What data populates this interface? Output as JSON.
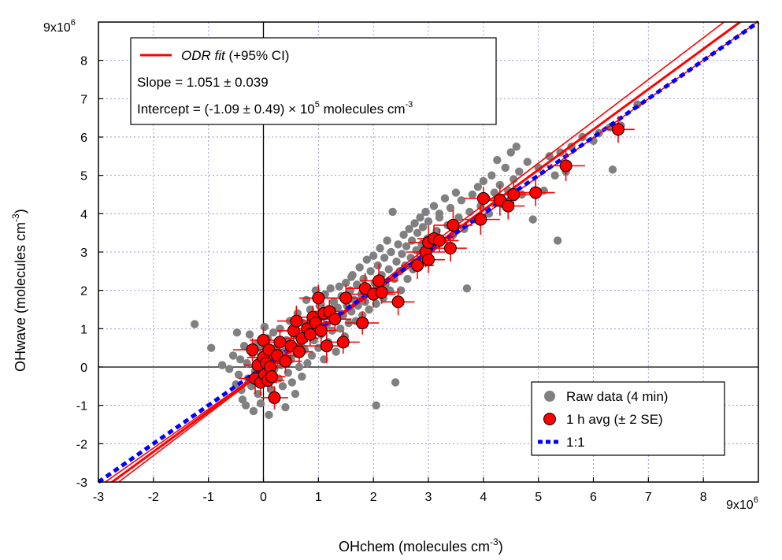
{
  "chart_data": {
    "type": "scatter",
    "xlabel": "OHchem (molecules cm",
    "xlabel_sup": "-3",
    "xlabel_tail": ")",
    "ylabel": "OHwave (molecules cm",
    "ylabel_sup": "-3",
    "ylabel_tail": ")",
    "xlim": [
      -3,
      9
    ],
    "ylim": [
      -3,
      9
    ],
    "xticks": [
      -3,
      -2,
      -1,
      0,
      1,
      2,
      3,
      4,
      5,
      6,
      7,
      8
    ],
    "yticks": [
      -3,
      -2,
      -1,
      0,
      1,
      2,
      3,
      4,
      5,
      6,
      7,
      8
    ],
    "x_multiplier": "9x10",
    "x_multiplier_exp": "6",
    "y_multiplier": "9x10",
    "y_multiplier_exp": "6",
    "grid": true,
    "fit_box": {
      "legend_label": "ODR fit",
      "legend_suffix": " (+95% CI)",
      "slope_text": "Slope = 1.051 ± 0.039",
      "intercept_text": "Intercept = (-1.09 ± 0.49) × 10",
      "intercept_exp": "5",
      "intercept_units": " molecules cm",
      "intercept_units_exp": "-3"
    },
    "legend": [
      {
        "label": "Raw data (4 min)",
        "marker": "gray-dot"
      },
      {
        "label": "1 h avg (± 2 SE)",
        "marker": "red-circle"
      },
      {
        "label": "1:1",
        "marker": "blue-dash"
      }
    ],
    "legend_position": "bottom-right",
    "colors": {
      "raw": "#808080",
      "avg": "#ff0000",
      "one_to_one": "#0000ff",
      "fit": "#ff0000",
      "grid": "#9a9adc"
    },
    "fit_lines": {
      "central": {
        "slope": 1.051,
        "intercept": -0.109
      },
      "ci_upper": {
        "slope": 1.09,
        "intercept": -0.13
      },
      "ci_lower": {
        "slope": 1.012,
        "intercept": -0.09
      }
    },
    "series": [
      {
        "name": "Raw data (4 min)",
        "points": [
          [
            -1.25,
            1.12
          ],
          [
            -0.95,
            0.5
          ],
          [
            -0.75,
            0.05
          ],
          [
            -0.62,
            -0.05
          ],
          [
            -0.55,
            0.3
          ],
          [
            -0.5,
            -0.45
          ],
          [
            -0.48,
            0.9
          ],
          [
            -0.45,
            -0.2
          ],
          [
            -0.42,
            0.2
          ],
          [
            -0.4,
            -0.6
          ],
          [
            -0.38,
            -0.85
          ],
          [
            -0.35,
            0.55
          ],
          [
            -0.32,
            -1.0
          ],
          [
            -0.3,
            0.1
          ],
          [
            -0.28,
            -0.3
          ],
          [
            -0.25,
            0.85
          ],
          [
            -0.22,
            -0.5
          ],
          [
            -0.2,
            0.35
          ],
          [
            -0.18,
            -1.15
          ],
          [
            -0.15,
            -0.1
          ],
          [
            -0.12,
            0.6
          ],
          [
            -0.1,
            -0.7
          ],
          [
            -0.08,
            0.15
          ],
          [
            -0.05,
            -0.95
          ],
          [
            -0.02,
            0.45
          ],
          [
            0.0,
            -0.4
          ],
          [
            0.02,
            1.05
          ],
          [
            0.05,
            -0.2
          ],
          [
            0.08,
            0.75
          ],
          [
            0.1,
            -1.25
          ],
          [
            0.12,
            0.3
          ],
          [
            0.15,
            -0.6
          ],
          [
            0.18,
            0.9
          ],
          [
            0.2,
            -0.05
          ],
          [
            0.22,
            -0.85
          ],
          [
            0.25,
            0.55
          ],
          [
            0.28,
            -0.3
          ],
          [
            0.3,
            1.0
          ],
          [
            0.32,
            0.05
          ],
          [
            0.35,
            -0.5
          ],
          [
            0.38,
            0.4
          ],
          [
            0.4,
            -1.05
          ],
          [
            0.42,
            0.7
          ],
          [
            0.45,
            -0.15
          ],
          [
            0.48,
            1.2
          ],
          [
            0.5,
            0.2
          ],
          [
            0.52,
            -0.4
          ],
          [
            0.55,
            0.85
          ],
          [
            0.58,
            -0.7
          ],
          [
            0.6,
            0.35
          ],
          [
            0.62,
            1.4
          ],
          [
            0.65,
            0.0
          ],
          [
            0.68,
            0.6
          ],
          [
            0.7,
            -0.25
          ],
          [
            0.72,
            1.15
          ],
          [
            0.75,
            0.45
          ],
          [
            0.78,
            1.75
          ],
          [
            0.8,
            0.1
          ],
          [
            0.82,
            0.95
          ],
          [
            0.85,
            1.5
          ],
          [
            0.88,
            0.3
          ],
          [
            0.9,
            1.25
          ],
          [
            0.92,
            0.7
          ],
          [
            0.95,
            2.0
          ],
          [
            0.98,
            1.05
          ],
          [
            1.0,
            0.5
          ],
          [
            1.02,
            1.6
          ],
          [
            1.05,
            0.85
          ],
          [
            1.08,
            1.3
          ],
          [
            1.1,
            0.2
          ],
          [
            1.12,
            1.9
          ],
          [
            1.15,
            1.1
          ],
          [
            1.18,
            0.65
          ],
          [
            1.2,
            1.45
          ],
          [
            1.22,
            2.05
          ],
          [
            1.25,
            0.95
          ],
          [
            1.28,
            1.7
          ],
          [
            1.3,
            1.2
          ],
          [
            1.32,
            0.4
          ],
          [
            1.35,
            1.55
          ],
          [
            1.38,
            2.1
          ],
          [
            1.4,
            1.0
          ],
          [
            1.42,
            1.85
          ],
          [
            1.45,
            1.35
          ],
          [
            1.48,
            0.8
          ],
          [
            1.5,
            2.2
          ],
          [
            1.52,
            1.6
          ],
          [
            1.55,
            1.15
          ],
          [
            1.58,
            2.0
          ],
          [
            1.6,
            1.45
          ],
          [
            1.62,
            2.4
          ],
          [
            1.65,
            1.75
          ],
          [
            1.68,
            1.2
          ],
          [
            1.7,
            2.15
          ],
          [
            1.72,
            1.6
          ],
          [
            1.75,
            2.6
          ],
          [
            1.78,
            1.9
          ],
          [
            1.8,
            1.35
          ],
          [
            1.82,
            2.3
          ],
          [
            1.85,
            1.7
          ],
          [
            1.88,
            2.8
          ],
          [
            1.9,
            2.05
          ],
          [
            1.92,
            1.5
          ],
          [
            1.95,
            2.5
          ],
          [
            1.98,
            1.85
          ],
          [
            2.0,
            2.9
          ],
          [
            2.02,
            2.2
          ],
          [
            2.05,
            1.65
          ],
          [
            2.08,
            2.65
          ],
          [
            2.1,
            2.0
          ],
          [
            2.12,
            3.1
          ],
          [
            2.15,
            2.4
          ],
          [
            2.18,
            1.8
          ],
          [
            2.2,
            2.85
          ],
          [
            2.22,
            2.15
          ],
          [
            2.25,
            3.3
          ],
          [
            2.28,
            2.55
          ],
          [
            2.3,
            2.0
          ],
          [
            2.32,
            3.0
          ],
          [
            2.35,
            4.05
          ],
          [
            2.38,
            2.3
          ],
          [
            2.4,
            -0.4
          ],
          [
            2.42,
            2.75
          ],
          [
            2.45,
            3.2
          ],
          [
            2.48,
            2.5
          ],
          [
            2.5,
            2.0
          ],
          [
            2.52,
            2.95
          ],
          [
            2.55,
            3.45
          ],
          [
            2.58,
            2.65
          ],
          [
            2.6,
            3.15
          ],
          [
            2.62,
            2.3
          ],
          [
            2.65,
            3.6
          ],
          [
            2.68,
            2.85
          ],
          [
            2.7,
            3.3
          ],
          [
            2.72,
            2.55
          ],
          [
            2.75,
            3.75
          ],
          [
            2.78,
            3.05
          ],
          [
            2.8,
            3.5
          ],
          [
            2.82,
            2.7
          ],
          [
            2.85,
            3.9
          ],
          [
            2.88,
            3.2
          ],
          [
            2.9,
            3.65
          ],
          [
            2.92,
            2.9
          ],
          [
            2.95,
            4.05
          ],
          [
            2.98,
            3.35
          ],
          [
            3.0,
            3.8
          ],
          [
            3.05,
            3.1
          ],
          [
            3.1,
            4.2
          ],
          [
            3.15,
            3.55
          ],
          [
            3.2,
            4.0
          ],
          [
            3.25,
            3.3
          ],
          [
            3.3,
            4.4
          ],
          [
            3.35,
            3.7
          ],
          [
            3.4,
            4.15
          ],
          [
            3.45,
            3.45
          ],
          [
            3.5,
            4.55
          ],
          [
            3.55,
            3.9
          ],
          [
            3.6,
            4.35
          ],
          [
            3.65,
            3.6
          ],
          [
            3.7,
            2.05
          ],
          [
            3.75,
            4.05
          ],
          [
            3.8,
            4.5
          ],
          [
            3.85,
            3.85
          ],
          [
            3.9,
            4.7
          ],
          [
            3.95,
            4.2
          ],
          [
            4.0,
            4.85
          ],
          [
            4.05,
            4.4
          ],
          [
            4.1,
            4.0
          ],
          [
            4.15,
            5.0
          ],
          [
            4.2,
            4.55
          ],
          [
            4.25,
            5.4
          ],
          [
            4.3,
            4.75
          ],
          [
            4.35,
            4.25
          ],
          [
            4.4,
            5.2
          ],
          [
            4.45,
            4.6
          ],
          [
            4.5,
            5.6
          ],
          [
            4.55,
            4.9
          ],
          [
            4.6,
            5.75
          ],
          [
            4.65,
            5.1
          ],
          [
            4.7,
            4.5
          ],
          [
            4.8,
            5.35
          ],
          [
            4.9,
            3.85
          ],
          [
            5.0,
            5.2
          ],
          [
            5.1,
            4.6
          ],
          [
            5.2,
            5.5
          ],
          [
            5.3,
            5.0
          ],
          [
            5.35,
            3.3
          ],
          [
            5.4,
            5.6
          ],
          [
            5.5,
            5.1
          ],
          [
            5.6,
            5.75
          ],
          [
            5.8,
            6.0
          ],
          [
            6.0,
            5.9
          ],
          [
            6.1,
            6.1
          ],
          [
            6.3,
            6.25
          ],
          [
            6.35,
            5.15
          ],
          [
            6.5,
            6.3
          ],
          [
            6.8,
            6.85
          ],
          [
            2.05,
            -1.0
          ],
          [
            3.2,
            3.9
          ],
          [
            1.6,
            2.35
          ]
        ]
      },
      {
        "name": "1 h avg (± 2 SE)",
        "points": [
          [
            -0.2,
            0.45,
            0.35,
            0.3
          ],
          [
            -0.15,
            -0.3,
            0.3,
            0.4
          ],
          [
            -0.1,
            0.05,
            0.25,
            0.3
          ],
          [
            -0.05,
            -0.4,
            0.3,
            0.35
          ],
          [
            0.0,
            0.7,
            0.25,
            0.35
          ],
          [
            0.0,
            0.25,
            0.3,
            0.3
          ],
          [
            0.02,
            -0.2,
            0.2,
            0.3
          ],
          [
            0.05,
            0.1,
            0.25,
            0.25
          ],
          [
            0.08,
            -0.35,
            0.3,
            0.3
          ],
          [
            0.1,
            0.45,
            0.25,
            0.3
          ],
          [
            0.12,
            0.0,
            0.2,
            0.25
          ],
          [
            0.15,
            -0.25,
            0.25,
            0.3
          ],
          [
            0.2,
            -0.8,
            0.25,
            0.3
          ],
          [
            0.25,
            0.3,
            0.3,
            0.35
          ],
          [
            0.3,
            0.65,
            0.25,
            0.3
          ],
          [
            0.4,
            0.15,
            0.3,
            0.3
          ],
          [
            0.5,
            0.55,
            0.3,
            0.35
          ],
          [
            0.55,
            0.95,
            0.3,
            0.3
          ],
          [
            0.6,
            1.2,
            0.35,
            0.4
          ],
          [
            0.65,
            0.4,
            0.25,
            0.3
          ],
          [
            0.7,
            0.75,
            0.3,
            0.3
          ],
          [
            0.8,
            1.0,
            0.3,
            0.35
          ],
          [
            0.85,
            0.85,
            0.25,
            0.3
          ],
          [
            0.9,
            1.3,
            0.35,
            0.3
          ],
          [
            0.95,
            1.15,
            0.3,
            0.3
          ],
          [
            1.0,
            1.8,
            0.35,
            0.35
          ],
          [
            1.05,
            0.95,
            0.3,
            0.35
          ],
          [
            1.1,
            1.4,
            0.25,
            0.3
          ],
          [
            1.15,
            0.55,
            0.4,
            0.45
          ],
          [
            1.2,
            1.45,
            0.3,
            0.3
          ],
          [
            1.3,
            1.25,
            0.3,
            0.3
          ],
          [
            1.45,
            0.65,
            0.3,
            0.3
          ],
          [
            1.5,
            1.8,
            0.35,
            0.35
          ],
          [
            1.8,
            1.15,
            0.3,
            0.3
          ],
          [
            1.85,
            2.05,
            0.35,
            0.4
          ],
          [
            2.0,
            1.9,
            0.4,
            0.35
          ],
          [
            2.1,
            2.25,
            0.35,
            0.45
          ],
          [
            2.15,
            1.95,
            0.3,
            0.3
          ],
          [
            2.45,
            1.7,
            0.3,
            0.35
          ],
          [
            2.8,
            2.65,
            0.3,
            0.35
          ],
          [
            2.95,
            3.0,
            0.35,
            0.4
          ],
          [
            3.0,
            2.8,
            0.3,
            0.35
          ],
          [
            3.0,
            3.25,
            0.35,
            0.45
          ],
          [
            3.1,
            3.35,
            0.3,
            0.35
          ],
          [
            3.2,
            3.3,
            0.35,
            0.3
          ],
          [
            3.4,
            3.1,
            0.3,
            0.35
          ],
          [
            3.45,
            3.7,
            0.35,
            0.4
          ],
          [
            3.95,
            3.85,
            0.35,
            0.4
          ],
          [
            4.0,
            4.4,
            0.35,
            0.3
          ],
          [
            4.3,
            4.35,
            0.3,
            0.4
          ],
          [
            4.45,
            4.2,
            0.3,
            0.35
          ],
          [
            4.55,
            4.5,
            0.3,
            0.3
          ],
          [
            4.95,
            4.55,
            0.35,
            0.35
          ],
          [
            5.5,
            5.25,
            0.35,
            0.4
          ],
          [
            6.45,
            6.2,
            0.3,
            0.35
          ]
        ]
      }
    ]
  }
}
